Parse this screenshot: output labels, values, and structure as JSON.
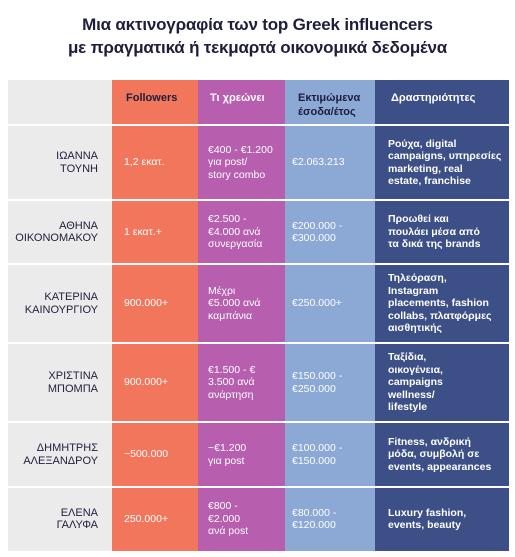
{
  "title": {
    "line1": "Μια ακτινογραφία των top Greek influencers",
    "line2": "με πραγματικά ή τεκμαρτά οικονομικά δεδομένα"
  },
  "headers": {
    "followers": "Followers",
    "price": "Τι χρεώνει",
    "income_line1": "Εκτιμώμενα",
    "income_line2": "έσοδα/έτος",
    "activities": "Δραστηριότητες"
  },
  "rows": [
    {
      "name": [
        "ΙΩΑΝΝΑ",
        "ΤΟΥΝΗ"
      ],
      "followers": "1,2 εκατ.",
      "price": [
        "€400 - €1.200",
        "για post/",
        "story combo"
      ],
      "income": [
        "€2.063.213"
      ],
      "activities": [
        "Ρούχα, digital",
        "campaigns, υπηρεσίες",
        "marketing, real",
        "estate, franchise"
      ]
    },
    {
      "name": [
        "ΑΘΗΝΑ",
        "ΟΙΚΟΝΟΜΑΚΟΥ"
      ],
      "followers": "1 εκατ.+",
      "price": [
        "€2.500 -",
        "€4.000 ανά",
        "συνεργασία"
      ],
      "income": [
        "€200.000 -",
        "€300.000"
      ],
      "activities": [
        "Προωθεί και",
        "πουλάει μέσα από",
        "τα δικά της brands"
      ]
    },
    {
      "name": [
        "ΚΑΤΕΡΙΝΑ",
        "ΚΑΙΝΟΥΡΓΙΟΥ"
      ],
      "followers": "900.000+",
      "price": [
        "Μέχρι",
        "€5.000 ανά",
        "καμπάνια"
      ],
      "income": [
        "€250.000+"
      ],
      "activities": [
        "Τηλεόραση,",
        "Instagram",
        "placements, fashion",
        "collabs, πλατφόρμες",
        "αισθητικής"
      ]
    },
    {
      "name": [
        "ΧΡΙΣΤΙΝΑ",
        "ΜΠΟΜΠΑ"
      ],
      "followers": "900.000+",
      "price": [
        "€1.500 - €",
        "3.500 ανά",
        "ανάρτηση"
      ],
      "income": [
        "€150.000 -",
        "€250.000"
      ],
      "activities": [
        "Ταξίδια,",
        "οικογένεια,",
        "campaigns",
        "wellness/",
        "lifestyle"
      ]
    },
    {
      "name": [
        "ΔΗΜΗΤΡΗΣ",
        "ΑΛΕΞΑΝΔΡΟΥ"
      ],
      "followers": "~500.000",
      "price": [
        "~€1.200",
        "για post"
      ],
      "income": [
        "€100.000 -",
        "€150.000"
      ],
      "activities": [
        "Fitness, ανδρική",
        "μόδα, συμβολή σε",
        "events, appearances"
      ]
    },
    {
      "name": [
        "ΕΛΕΝΑ",
        "ΓΑΛΥΦΑ"
      ],
      "followers": "250.000+",
      "price": [
        "€800 -",
        "€2.000",
        "ανά post"
      ],
      "income": [
        "€80.000 -",
        "€120.000"
      ],
      "activities": [
        "Luxury fashion,",
        "events, beauty"
      ]
    }
  ]
}
